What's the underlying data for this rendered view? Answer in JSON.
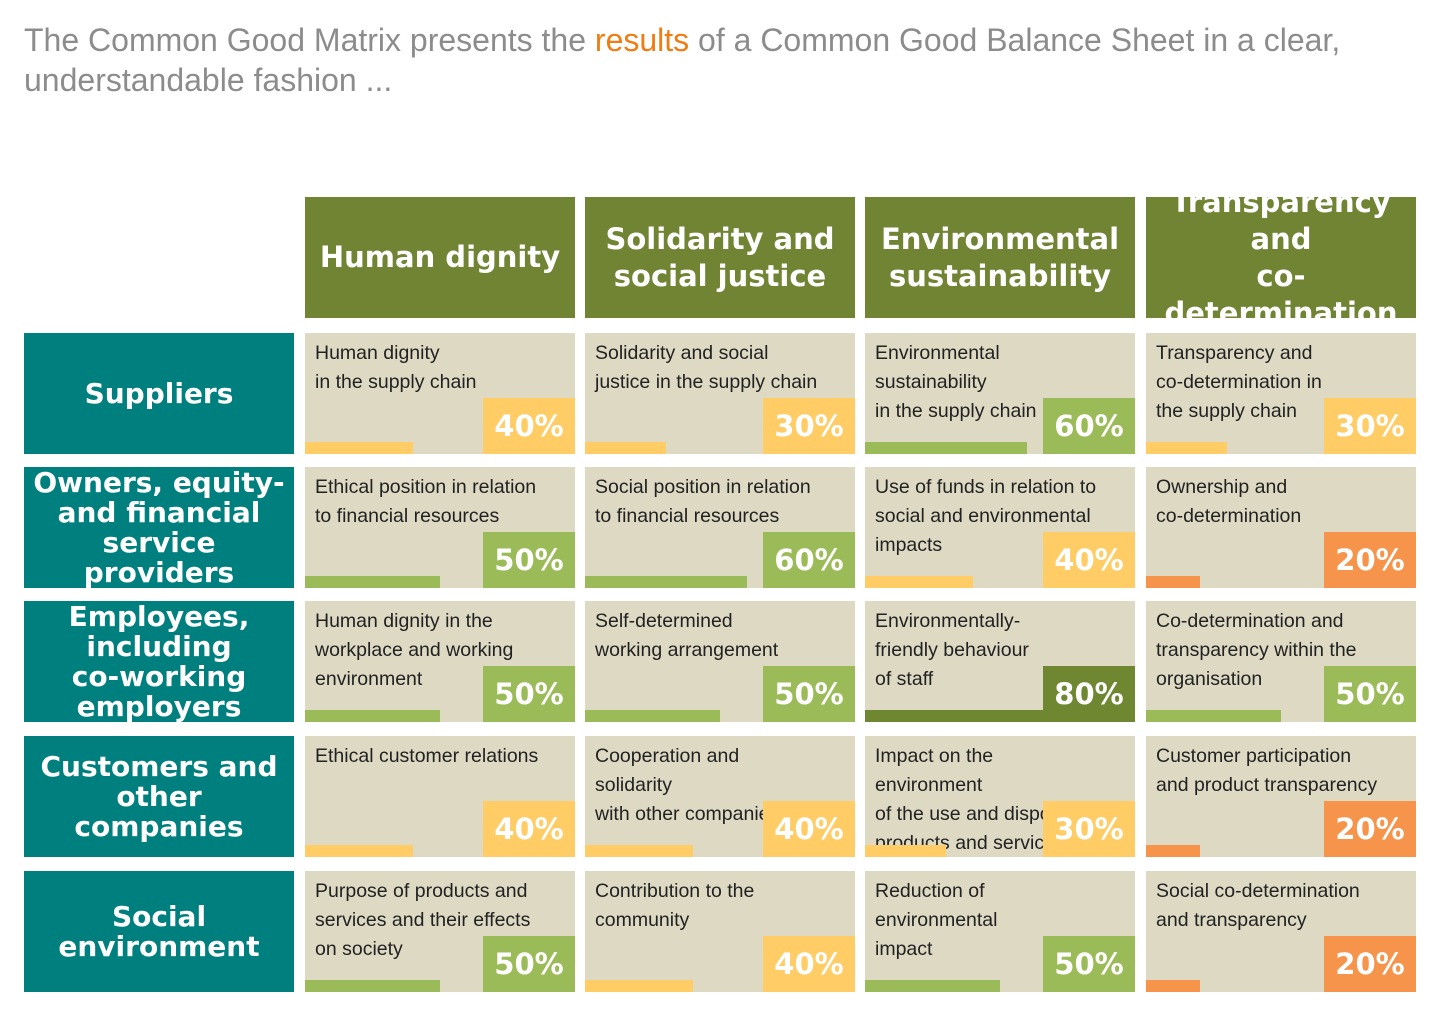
{
  "headline": {
    "before": "The Common Good Matrix presents the ",
    "highlight": "results",
    "after": " of a Common Good Balance Sheet in a clear, understandable fashion ..."
  },
  "colors": {
    "column_header": "#708434",
    "row_header": "#007f7f",
    "cell_bg": "#ded9c3",
    "highlight_text": "#f07d14",
    "level_20": "#f5944a",
    "level_30_40": "#ffcc66",
    "level_50_60": "#9bbb59",
    "level_80": "#6e8730"
  },
  "columns": [
    "Human dignity",
    "Solidarity and\nsocial justice",
    "Environmental\nsustainability",
    "Transparency and\nco-determination"
  ],
  "rows": [
    {
      "label": "Suppliers",
      "cells": [
        {
          "text": "Human dignity\nin the supply chain",
          "value": 40,
          "label": "40%"
        },
        {
          "text": "Solidarity and social\njustice in the supply chain",
          "value": 30,
          "label": "30%"
        },
        {
          "text": "Environmental\nsustainability\nin the supply chain",
          "value": 60,
          "label": "60%"
        },
        {
          "text": "Transparency and\nco-determination in\nthe supply chain",
          "value": 30,
          "label": "30%"
        }
      ]
    },
    {
      "label": "Owners, equity-\nand financial\nservice providers",
      "cells": [
        {
          "text": "Ethical position in relation\nto financial resources",
          "value": 50,
          "label": "50%"
        },
        {
          "text": "Social position in relation\nto financial resources",
          "value": 60,
          "label": "60%"
        },
        {
          "text": "Use of funds in relation to\nsocial and environmental\nimpacts",
          "value": 40,
          "label": "40%"
        },
        {
          "text": "Ownership and\nco-determination",
          "value": 20,
          "label": "20%"
        }
      ]
    },
    {
      "label": "Employees,\nincluding\nco-working\nemployers",
      "cells": [
        {
          "text": "Human dignity in the\nworkplace and working\nenvironment",
          "value": 50,
          "label": "50%"
        },
        {
          "text": "Self-determined\nworking arrangement",
          "value": 50,
          "label": "50%"
        },
        {
          "text": "Environmentally-\nfriendly behaviour\nof staff",
          "value": 80,
          "label": "80%"
        },
        {
          "text": "Co-determination and\ntransparency within the\norganisation",
          "value": 50,
          "label": "50%"
        }
      ]
    },
    {
      "label": "Customers and\nother companies",
      "cells": [
        {
          "text": "Ethical customer relations",
          "value": 40,
          "label": "40%"
        },
        {
          "text": "Cooperation and\nsolidarity\nwith other companies",
          "value": 40,
          "label": "40%"
        },
        {
          "text": "Impact on the\nenvironment\nof the use and disposal of\nproducts and services",
          "value": 30,
          "label": "30%"
        },
        {
          "text": "Customer participation\nand product transparency",
          "value": 20,
          "label": "20%"
        }
      ]
    },
    {
      "label": "Social\nenvironment",
      "cells": [
        {
          "text": "Purpose of products and\nservices and their effects\non society",
          "value": 50,
          "label": "50%"
        },
        {
          "text": "Contribution to the\ncommunity",
          "value": 40,
          "label": "40%"
        },
        {
          "text": "Reduction of\nenvironmental\nimpact",
          "value": 50,
          "label": "50%"
        },
        {
          "text": "Social co-determination\nand transparency",
          "value": 20,
          "label": "20%"
        }
      ]
    }
  ]
}
